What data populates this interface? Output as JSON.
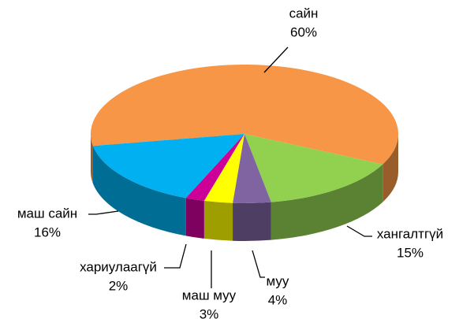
{
  "chart_data": {
    "type": "pie",
    "categories": [
      "сайн",
      "хангалтгүй",
      "муу",
      "маш муу",
      "хариулаагүй",
      "маш сайн"
    ],
    "values": [
      60,
      15,
      4,
      3,
      2,
      16
    ],
    "value_labels": [
      "60%",
      "15%",
      "4%",
      "3%",
      "2%",
      "16%"
    ],
    "colors": [
      "#f79646",
      "#92d050",
      "#8064a2",
      "#ffff00",
      "#cc0099",
      "#00b0f0"
    ]
  }
}
